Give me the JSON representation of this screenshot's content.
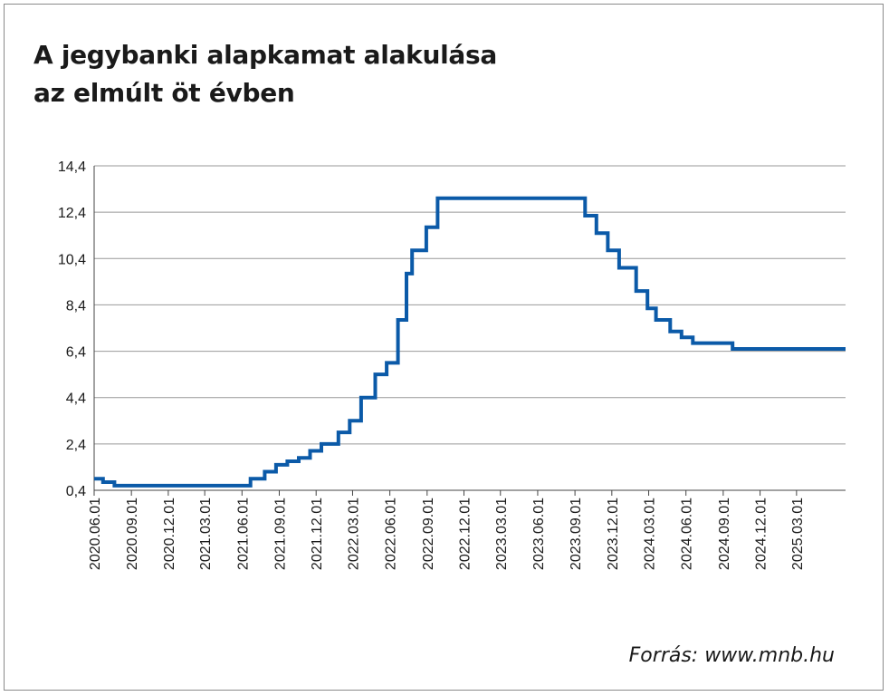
{
  "title_lines": [
    "A jegybanki alapkamat alakulása",
    "az elmúlt öt évben"
  ],
  "source": "Forrás: www.mnb.hu",
  "colors": {
    "line": "#0b5aa8",
    "grid": "#999999",
    "axis": "#444444",
    "text": "#1a1a1a"
  },
  "chart_data": {
    "type": "line",
    "title": "A jegybanki alapkamat alakulása az elmúlt öt évben",
    "xlabel": "",
    "ylabel": "",
    "ylim": [
      0.4,
      14.4
    ],
    "yticks": [
      0.4,
      2.4,
      4.4,
      6.4,
      8.4,
      10.4,
      12.4,
      14.4
    ],
    "ytick_labels": [
      "0,4",
      "2,4",
      "4,4",
      "6,4",
      "8,4",
      "10,4",
      "12,4",
      "14,4"
    ],
    "xlim": [
      "2020-06-01",
      "2025-06-30"
    ],
    "xtick_labels": [
      "2020.06.01",
      "2020.09.01",
      "2020.12.01",
      "2021.03.01",
      "2021.06.01",
      "2021.09.01",
      "2021.12.01",
      "2022.03.01",
      "2022.06.01",
      "2022.09.01",
      "2022.12.01",
      "2023.03.01",
      "2023.06.01",
      "2023.09.01",
      "2023.12.01",
      "2024.03.01",
      "2024.06.01",
      "2024.09.01",
      "2024.12.01",
      "2025.03.01"
    ],
    "grid": true,
    "step": true,
    "series": [
      {
        "points": [
          [
            "2020-06-01",
            0.9
          ],
          [
            "2020-06-23",
            0.75
          ],
          [
            "2020-07-21",
            0.6
          ],
          [
            "2021-06-22",
            0.9
          ],
          [
            "2021-07-27",
            1.2
          ],
          [
            "2021-08-24",
            1.5
          ],
          [
            "2021-09-21",
            1.65
          ],
          [
            "2021-10-19",
            1.8
          ],
          [
            "2021-11-16",
            2.1
          ],
          [
            "2021-12-14",
            2.4
          ],
          [
            "2022-01-25",
            2.9
          ],
          [
            "2022-02-22",
            3.4
          ],
          [
            "2022-03-22",
            4.4
          ],
          [
            "2022-04-26",
            5.4
          ],
          [
            "2022-05-24",
            5.9
          ],
          [
            "2022-06-21",
            7.75
          ],
          [
            "2022-07-12",
            9.75
          ],
          [
            "2022-07-26",
            10.75
          ],
          [
            "2022-08-30",
            11.75
          ],
          [
            "2022-09-27",
            13.0
          ],
          [
            "2023-09-26",
            12.25
          ],
          [
            "2023-10-24",
            11.5
          ],
          [
            "2023-11-21",
            10.75
          ],
          [
            "2023-12-19",
            10.0
          ],
          [
            "2024-01-30",
            9.0
          ],
          [
            "2024-02-27",
            8.25
          ],
          [
            "2024-03-19",
            7.75
          ],
          [
            "2024-04-23",
            7.25
          ],
          [
            "2024-05-21",
            7.0
          ],
          [
            "2024-06-18",
            6.75
          ],
          [
            "2024-07-23",
            6.75
          ],
          [
            "2024-09-24",
            6.5
          ],
          [
            "2025-06-30",
            6.5
          ]
        ]
      }
    ]
  }
}
